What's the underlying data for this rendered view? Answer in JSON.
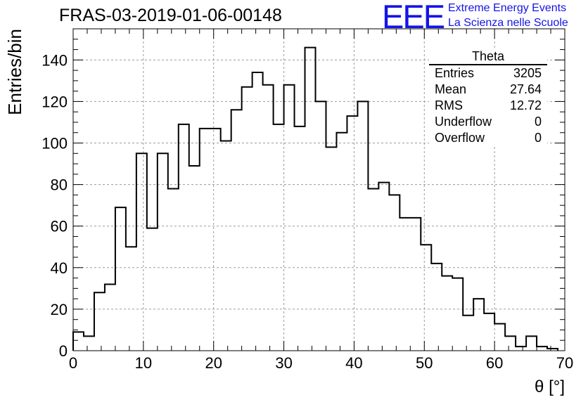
{
  "header": {
    "title": "FRAS-03-2019-01-06-00148",
    "logo": "EEE",
    "brand_line1": "Extreme Energy Events",
    "brand_line2": "La Scienza nelle Scuole"
  },
  "stats_box": {
    "name": "Theta",
    "rows": [
      {
        "label": "Entries",
        "value": "3205"
      },
      {
        "label": "Mean",
        "value": "27.64"
      },
      {
        "label": "RMS",
        "value": "12.72"
      },
      {
        "label": "Underflow",
        "value": "0"
      },
      {
        "label": "Overflow",
        "value": "0"
      }
    ]
  },
  "chart_data": {
    "type": "bar",
    "style": "step-histogram",
    "title": "FRAS-03-2019-01-06-00148",
    "xlabel": "θ [°]",
    "ylabel": "Entries/bin",
    "xlim": [
      0,
      70
    ],
    "ylim": [
      0,
      155
    ],
    "grid": true,
    "line_color": "#000000",
    "x_ticks": [
      0,
      10,
      20,
      30,
      40,
      50,
      60,
      70
    ],
    "y_ticks": [
      0,
      20,
      40,
      60,
      80,
      100,
      120,
      140
    ],
    "bin_width": 1.5,
    "bin_edges_start": 0,
    "values": [
      9,
      7,
      28,
      32,
      69,
      50,
      95,
      59,
      95,
      78,
      109,
      89,
      107,
      107,
      101,
      116,
      127,
      134,
      128,
      109,
      128,
      108,
      146,
      120,
      98,
      105,
      113,
      120,
      78,
      81,
      75,
      64,
      64,
      51,
      42,
      36,
      35,
      17,
      25,
      18,
      13,
      7,
      2,
      7,
      2,
      1
    ]
  }
}
